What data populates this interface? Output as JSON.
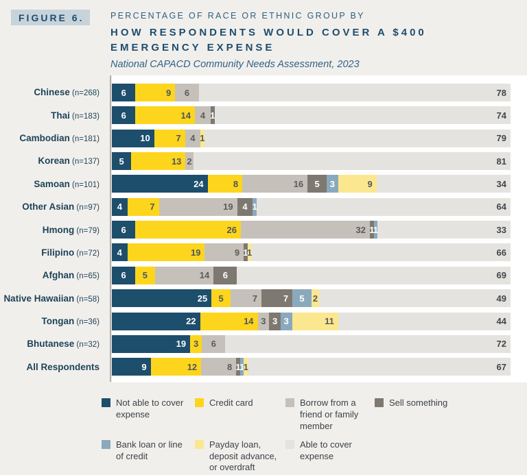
{
  "header": {
    "figure_tag": "FIGURE 6.",
    "kicker": "PERCENTAGE OF RACE OR ETHNIC GROUP BY",
    "title_line1": "HOW RESPONDENTS WOULD COVER A $400",
    "title_line2": "EMERGENCY EXPENSE",
    "subtitle": "National CAPACD Community Needs Assessment, 2023"
  },
  "colors": {
    "page_background": "#f1efec",
    "plot_background": "#ffffff",
    "axis_line": "#b2b0ac",
    "title_navy": "#1d4d6e",
    "figure_tag_background": "#c7d3db"
  },
  "chart_data": {
    "type": "bar",
    "orientation": "horizontal",
    "stacked": true,
    "unit": "percent",
    "xlim": [
      0,
      100
    ],
    "grid": false,
    "legend_position": "bottom",
    "series": [
      {
        "key": "not_able",
        "label": "Not able to cover expense",
        "color": "#1d4e6c",
        "text_color": "#ffffff"
      },
      {
        "key": "credit_card",
        "label": "Credit card",
        "color": "#fdd51d",
        "text_color": "#4e565e"
      },
      {
        "key": "borrow",
        "label": "Borrow from a friend or family member",
        "color": "#c5c1ba",
        "text_color": "#5b5b58"
      },
      {
        "key": "sell",
        "label": "Sell something",
        "color": "#7d7970",
        "text_color": "#ffffff"
      },
      {
        "key": "bank_loan",
        "label": "Bank loan or line of credit",
        "color": "#8ba9bd",
        "text_color": "#ffffff"
      },
      {
        "key": "payday",
        "label": "Payday loan, deposit advance, or overdraft",
        "color": "#fbe78f",
        "text_color": "#55595c"
      },
      {
        "key": "able",
        "label": "Able to cover expense",
        "color": "#e5e3df",
        "text_color": "#3f474c"
      }
    ],
    "rows": [
      {
        "label": "Chinese",
        "n": "(n=268)",
        "segments": [
          {
            "series": "not_able",
            "value": 6
          },
          {
            "series": "credit_card",
            "value": 9
          },
          {
            "series": "borrow",
            "value": 6
          },
          {
            "series": "able",
            "value": 78
          }
        ]
      },
      {
        "label": "Thai",
        "n": "(n=183)",
        "segments": [
          {
            "series": "not_able",
            "value": 6
          },
          {
            "series": "credit_card",
            "value": 14
          },
          {
            "series": "borrow",
            "value": 4
          },
          {
            "series": "sell",
            "value": 1
          },
          {
            "series": "able",
            "value": 74
          }
        ]
      },
      {
        "label": "Cambodian",
        "n": "(n=181)",
        "segments": [
          {
            "series": "not_able",
            "value": 10
          },
          {
            "series": "credit_card",
            "value": 7
          },
          {
            "series": "borrow",
            "value": 4
          },
          {
            "series": "payday",
            "value": 1
          },
          {
            "series": "able",
            "value": 79
          }
        ]
      },
      {
        "label": "Korean",
        "n": "(n=137)",
        "segments": [
          {
            "series": "not_able",
            "value": 5
          },
          {
            "series": "credit_card",
            "value": 13
          },
          {
            "series": "borrow",
            "value": 2
          },
          {
            "series": "able",
            "value": 81
          }
        ]
      },
      {
        "label": "Samoan",
        "n": "(n=101)",
        "segments": [
          {
            "series": "not_able",
            "value": 24
          },
          {
            "series": "credit_card",
            "value": 8
          },
          {
            "series": "borrow",
            "value": 16
          },
          {
            "series": "sell",
            "value": 5
          },
          {
            "series": "bank_loan",
            "value": 3
          },
          {
            "series": "payday",
            "value": 9
          },
          {
            "series": "able",
            "value": 34
          }
        ]
      },
      {
        "label": "Other Asian",
        "n": "(n=97)",
        "segments": [
          {
            "series": "not_able",
            "value": 4
          },
          {
            "series": "credit_card",
            "value": 7
          },
          {
            "series": "borrow",
            "value": 19
          },
          {
            "series": "sell",
            "value": 4
          },
          {
            "series": "bank_loan",
            "value": 1
          },
          {
            "series": "able",
            "value": 64
          }
        ]
      },
      {
        "label": "Hmong",
        "n": "(n=79)",
        "segments": [
          {
            "series": "not_able",
            "value": 6
          },
          {
            "series": "credit_card",
            "value": 26
          },
          {
            "series": "borrow",
            "value": 32
          },
          {
            "series": "sell",
            "value": 1
          },
          {
            "series": "bank_loan",
            "value": 1
          },
          {
            "series": "able",
            "value": 33
          }
        ]
      },
      {
        "label": "Filipino",
        "n": "(n=72)",
        "segments": [
          {
            "series": "not_able",
            "value": 4
          },
          {
            "series": "credit_card",
            "value": 19
          },
          {
            "series": "borrow",
            "value": 9
          },
          {
            "series": "sell",
            "value": 1
          },
          {
            "series": "payday",
            "value": 1
          },
          {
            "series": "able",
            "value": 66
          }
        ]
      },
      {
        "label": "Afghan",
        "n": "(n=65)",
        "segments": [
          {
            "series": "not_able",
            "value": 6
          },
          {
            "series": "credit_card",
            "value": 5
          },
          {
            "series": "borrow",
            "value": 14
          },
          {
            "series": "sell",
            "value": 6
          },
          {
            "series": "able",
            "value": 69
          }
        ]
      },
      {
        "label": "Native Hawaiian",
        "n": "(n=58)",
        "segments": [
          {
            "series": "not_able",
            "value": 25
          },
          {
            "series": "credit_card",
            "value": 5
          },
          {
            "series": "borrow",
            "value": 7
          },
          {
            "series": "sell",
            "value": 7
          },
          {
            "series": "bank_loan",
            "value": 5
          },
          {
            "series": "payday",
            "value": 2
          },
          {
            "series": "able",
            "value": 49
          }
        ]
      },
      {
        "label": "Tongan",
        "n": "(n=36)",
        "segments": [
          {
            "series": "not_able",
            "value": 22
          },
          {
            "series": "credit_card",
            "value": 14
          },
          {
            "series": "borrow",
            "value": 3
          },
          {
            "series": "sell",
            "value": 3
          },
          {
            "series": "bank_loan",
            "value": 3
          },
          {
            "series": "payday",
            "value": 11
          },
          {
            "series": "able",
            "value": 44
          }
        ]
      },
      {
        "label": "Bhutanese",
        "n": "(n=32)",
        "segments": [
          {
            "series": "not_able",
            "value": 19
          },
          {
            "series": "credit_card",
            "value": 3
          },
          {
            "series": "borrow",
            "value": 6
          },
          {
            "series": "able",
            "value": 72
          }
        ]
      },
      {
        "label": "All Respondents",
        "n": "",
        "segments": [
          {
            "series": "not_able",
            "value": 9
          },
          {
            "series": "credit_card",
            "value": 12
          },
          {
            "series": "borrow",
            "value": 8
          },
          {
            "series": "sell",
            "value": 1
          },
          {
            "series": "bank_loan",
            "value": 1
          },
          {
            "series": "payday",
            "value": 1
          },
          {
            "series": "able",
            "value": 67
          }
        ]
      }
    ]
  }
}
